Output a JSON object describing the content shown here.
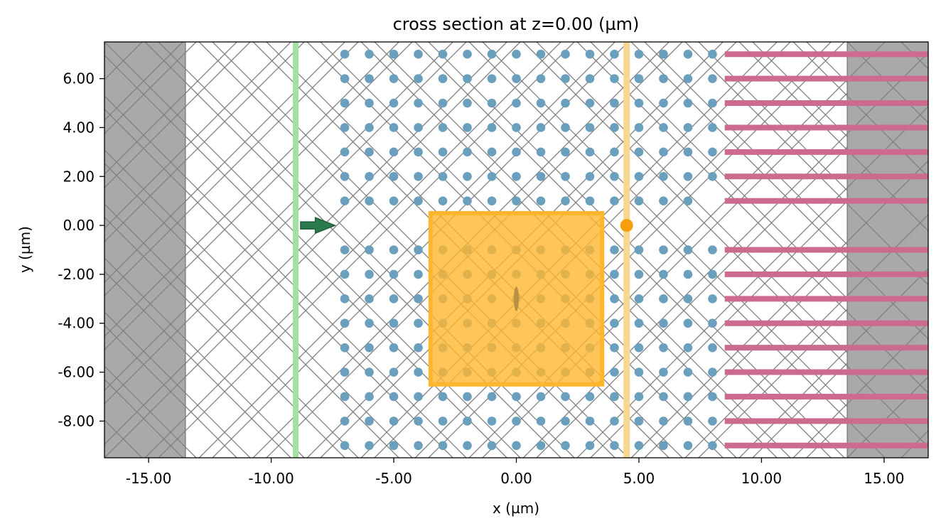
{
  "chart_data": {
    "type": "scatter",
    "title": "cross section at z=0.00 (µm)",
    "xlabel": "x (µm)",
    "ylabel": "y (µm)",
    "xlim": [
      -16.8,
      16.8
    ],
    "ylim": [
      -9.5,
      7.5
    ],
    "xticks": [
      -15,
      -10,
      -5,
      0,
      5,
      10,
      15
    ],
    "xtick_labels": [
      "-15.00",
      "-10.00",
      "-5.00",
      "0.00",
      "5.00",
      "10.00",
      "15.00"
    ],
    "yticks": [
      6,
      4,
      2,
      0,
      -2,
      -4,
      -6,
      -8
    ],
    "ytick_labels": [
      "6.00",
      "4.00",
      "2.00",
      "0.00",
      "-2.00",
      "-4.00",
      "-6.00",
      "-8.00"
    ],
    "grid": false,
    "colors": {
      "pml": "#a9a9a9",
      "pml_hatch": "#808080",
      "source": "#a3e0a3",
      "source_arrow": "#2a7a4e",
      "rods": "#6a9fbd",
      "monitor_box": "#ffb62e",
      "monitor_line": "#f8d792",
      "point_monitor": "#f5a00a",
      "waveguides": "#cc6b8f"
    },
    "pml_regions": [
      {
        "name": "pml-left",
        "x": [
          -16.8,
          -13.5
        ]
      },
      {
        "name": "pml-right",
        "x": [
          13.5,
          16.8
        ]
      }
    ],
    "plane_source": {
      "x": -9.0,
      "arrow_y": 0.0,
      "arrow_x": [
        -8.8,
        -7.4
      ]
    },
    "rod_lattice": {
      "x_values": [
        -7,
        -6,
        -5,
        -4,
        -3,
        -2,
        -1,
        0,
        1,
        2,
        3,
        4,
        5,
        6,
        7,
        8
      ],
      "y_values": [
        7,
        6,
        5,
        4,
        3,
        2,
        1,
        -1,
        -2,
        -3,
        -4,
        -5,
        -6,
        -7,
        -8,
        -9
      ],
      "rows_ending_at_x_3": [
        1
      ]
    },
    "waveguides": {
      "x_range": [
        8.5,
        16.8
      ],
      "y_values": [
        7,
        6,
        5,
        4,
        3,
        2,
        1,
        -1,
        -2,
        -3,
        -4,
        -5,
        -6,
        -7,
        -8,
        -9
      ]
    },
    "field_monitor_box": {
      "x": [
        -3.5,
        3.5
      ],
      "y": [
        -6.5,
        0.5
      ]
    },
    "flux_monitor_plane": {
      "x": 4.5
    },
    "point_monitor": {
      "x": 4.5,
      "y": 0.0
    },
    "dipole_source": {
      "x": 0.0,
      "y": -3.0
    }
  }
}
